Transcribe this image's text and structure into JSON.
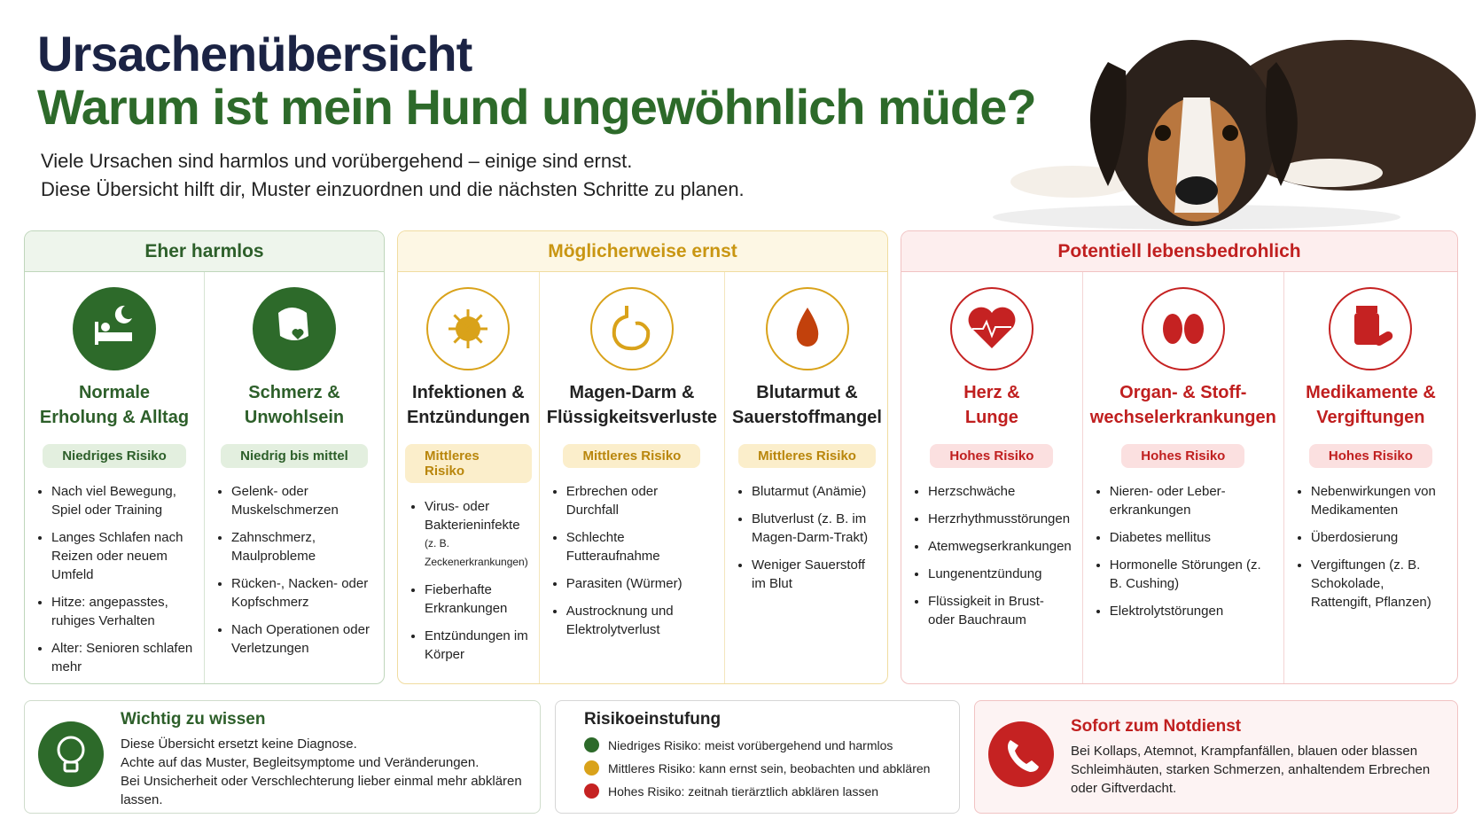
{
  "header": {
    "title": "Ursachenübersicht",
    "subtitle": "Warum ist mein Hund ungewöhnlich müde?",
    "intro": [
      "Viele Ursachen sind harmlos und vorübergehend – einige sind ernst.",
      "Diese Übersicht hilft dir, Muster einzuordnen und die nächsten Schritte zu planen."
    ]
  },
  "groups": [
    {
      "title": "Eher harmlos",
      "cards": [
        {
          "title": [
            "Normale",
            "Erholung & Alltag"
          ],
          "risk": "Niedriges Risiko",
          "items": [
            "Nach viel Bewegung, Spiel oder Training",
            "Langes Schlafen nach Reizen oder neuem Umfeld",
            "Hitze: angepasstes, ruhiges Verhalten",
            "Alter: Senioren schlafen mehr"
          ]
        },
        {
          "title": [
            "Schmerz &",
            "Unwohlsein"
          ],
          "risk": "Niedrig bis mittel",
          "items": [
            "Gelenk- oder Muskelschmerzen",
            "Zahnschmerz, Maulprobleme",
            "Rücken-, Nacken- oder Kopfschmerz",
            "Nach Operationen oder Verletzungen"
          ]
        }
      ]
    },
    {
      "title": "Möglicherweise ernst",
      "cards": [
        {
          "title": [
            "Infektionen &",
            "Entzündungen"
          ],
          "risk": "Mittleres Risiko",
          "items": [
            {
              "text": "Virus- oder Bakterieninfekte",
              "note": "(z. B. Zeckenerkrankungen)"
            },
            "Fieberhafte Erkrankungen",
            "Entzündungen im Körper"
          ]
        },
        {
          "title": [
            "Magen-Darm &",
            "Flüssigkeitsverluste"
          ],
          "risk": "Mittleres Risiko",
          "items": [
            "Erbrechen oder Durchfall",
            "Schlechte Futteraufnahme",
            "Parasiten (Würmer)",
            "Austrocknung und Elektrolytverlust"
          ]
        },
        {
          "title": [
            "Blutarmut &",
            "Sauerstoffmangel"
          ],
          "risk": "Mittleres Risiko",
          "items": [
            "Blutarmut (Anämie)",
            "Blutverlust (z. B. im Magen-Darm-Trakt)",
            "Weniger Sauerstoff im Blut"
          ]
        }
      ]
    },
    {
      "title": "Potentiell lebensbedrohlich",
      "cards": [
        {
          "title": [
            "Herz &",
            "Lunge"
          ],
          "risk": "Hohes Risiko",
          "items": [
            "Herzschwäche",
            "Herzrhythmusstörungen",
            "Atemwegserkrankungen",
            "Lungenentzündung",
            "Flüssigkeit in Brust- oder Bauchraum"
          ]
        },
        {
          "title": [
            "Organ- & Stoff-",
            "wechselerkrankungen"
          ],
          "risk": "Hohes Risiko",
          "items": [
            "Nieren- oder Leber-erkrankungen",
            "Diabetes mellitus",
            "Hormonelle Störungen (z. B. Cushing)",
            "Elektrolytstörungen"
          ]
        },
        {
          "title": [
            "Medikamente &",
            "Vergiftungen"
          ],
          "risk": "Hohes Risiko",
          "items": [
            "Nebenwirkungen von Medikamenten",
            "Überdosierung",
            "Vergiftungen (z. B. Schokolade, Rattengift, Pflanzen)"
          ]
        }
      ]
    }
  ],
  "info": {
    "title": "Wichtig zu wissen",
    "lines": [
      "Diese Übersicht ersetzt keine Diagnose.",
      "Achte auf das Muster, Begleitsymptome und Veränderungen.",
      "Bei Unsicherheit oder Verschlechterung lieber einmal mehr abklären lassen."
    ]
  },
  "legend": {
    "title": "Risikoeinstufung",
    "items": [
      "Niedriges Risiko: meist vorübergehend und harmlos",
      "Mittleres Risiko: kann ernst sein, beobachten und abklären",
      "Hohes Risiko: zeitnah tierärztlich abklären lassen"
    ]
  },
  "emergency": {
    "title": "Sofort zum Notdienst",
    "lines": [
      "Bei Kollaps, Atemnot, Krampfanfällen, blauen oder blassen Schleimhäuten, starken Schmerzen, anhaltendem Erbrechen oder Giftverdacht."
    ]
  }
}
